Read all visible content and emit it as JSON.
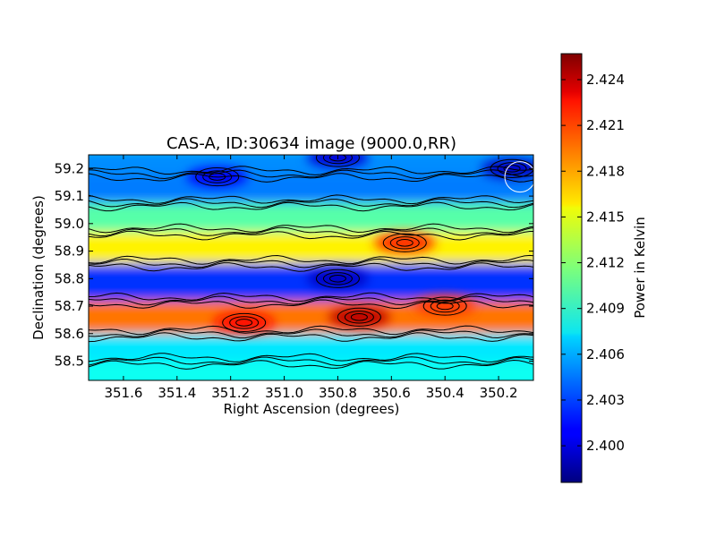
{
  "chart_data": {
    "type": "heatmap",
    "title": "CAS-A, ID:30634 image (9000.0,RR)",
    "xlabel": "Right Ascension (degrees)",
    "ylabel": "Declination (degrees)",
    "x_ticks": [
      "351.6",
      "351.4",
      "351.2",
      "351.0",
      "350.8",
      "350.6",
      "350.4",
      "350.2"
    ],
    "x_tick_values": [
      351.6,
      351.4,
      351.2,
      351.0,
      350.8,
      350.6,
      350.4,
      350.2
    ],
    "xlim": [
      351.73,
      350.07
    ],
    "y_ticks": [
      "59.2",
      "59.1",
      "59.0",
      "58.9",
      "58.8",
      "58.7",
      "58.6",
      "58.5"
    ],
    "y_tick_values": [
      59.2,
      59.1,
      59.0,
      58.9,
      58.8,
      58.7,
      58.6,
      58.5
    ],
    "ylim": [
      58.43,
      59.25
    ],
    "colorbar": {
      "label": "Power in Kelvin",
      "ticks": [
        "2.424",
        "2.421",
        "2.418",
        "2.415",
        "2.412",
        "2.409",
        "2.406",
        "2.403",
        "2.400"
      ],
      "tick_values": [
        2.424,
        2.421,
        2.418,
        2.415,
        2.412,
        2.409,
        2.406,
        2.403,
        2.4
      ],
      "range": [
        2.3976,
        2.4257
      ],
      "colormap": "jet"
    },
    "contours": true,
    "bands": [
      {
        "dec": 59.23,
        "power": 2.405
      },
      {
        "dec": 59.13,
        "power": 2.4045
      },
      {
        "dec": 59.02,
        "power": 2.4105
      },
      {
        "dec": 58.92,
        "power": 2.4155
      },
      {
        "dec": 58.79,
        "power": 2.4025
      },
      {
        "dec": 58.65,
        "power": 2.419
      },
      {
        "dec": 58.55,
        "power": 2.4075
      },
      {
        "dec": 58.45,
        "power": 2.4085
      }
    ],
    "features": [
      {
        "ra": 350.72,
        "dec": 58.66,
        "power": 2.424
      },
      {
        "ra": 351.15,
        "dec": 58.64,
        "power": 2.422
      },
      {
        "ra": 350.4,
        "dec": 58.7,
        "power": 2.4205
      },
      {
        "ra": 350.55,
        "dec": 58.93,
        "power": 2.421
      },
      {
        "ra": 350.8,
        "dec": 58.8,
        "power": 2.3995
      },
      {
        "ra": 351.25,
        "dec": 59.17,
        "power": 2.401
      },
      {
        "ra": 350.15,
        "dec": 59.2,
        "power": 2.3995
      },
      {
        "ra": 350.8,
        "dec": 59.24,
        "power": 2.4
      }
    ],
    "beam": {
      "ra": 350.12,
      "dec": 59.17
    }
  }
}
